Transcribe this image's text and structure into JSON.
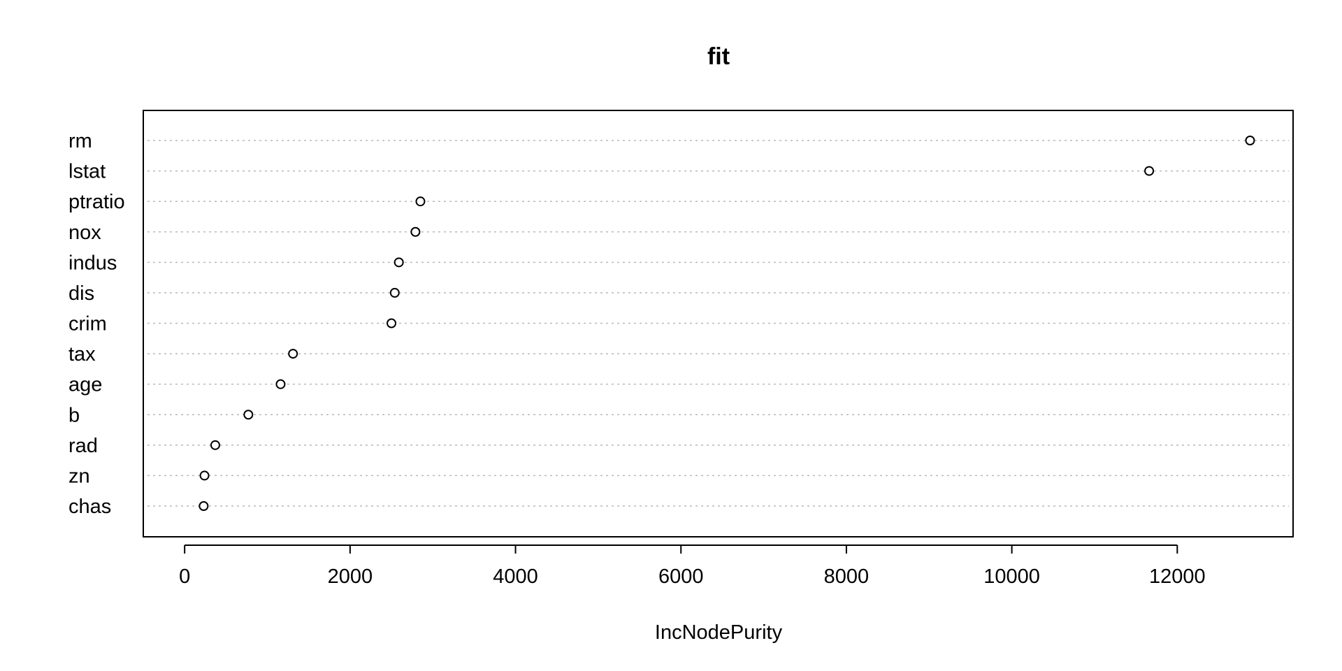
{
  "chart_data": {
    "type": "scatter",
    "title": "fit",
    "xlabel": "IncNodePurity",
    "ylabel": "",
    "xlim": [
      -500,
      13400
    ],
    "xticks": [
      0,
      2000,
      4000,
      6000,
      8000,
      10000,
      12000
    ],
    "grid": "dotted horizontal lines per category",
    "legend": "none",
    "categories": [
      "rm",
      "lstat",
      "ptratio",
      "nox",
      "indus",
      "dis",
      "crim",
      "tax",
      "age",
      "b",
      "rad",
      "zn",
      "chas"
    ],
    "values": [
      12880,
      11660,
      2850,
      2790,
      2590,
      2540,
      2500,
      1310,
      1160,
      770,
      370,
      240,
      230
    ]
  }
}
